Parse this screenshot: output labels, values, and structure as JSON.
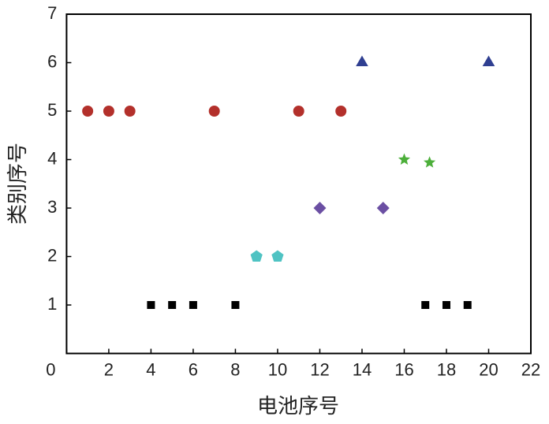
{
  "chart_data": {
    "type": "scatter",
    "x_label": "电池序号",
    "y_label": "类别序号",
    "xlim": [
      0,
      22
    ],
    "xticks": [
      0,
      2,
      4,
      6,
      8,
      10,
      12,
      14,
      16,
      18,
      20,
      22
    ],
    "ylim": [
      0,
      7
    ],
    "yticks": [
      0,
      1,
      2,
      3,
      4,
      5,
      6,
      7
    ],
    "grid": false,
    "series": [
      {
        "color": "#000000",
        "marker": "square",
        "x": [
          4,
          5,
          6,
          8,
          17,
          18,
          19
        ],
        "values": [
          1,
          1,
          1,
          1,
          1,
          1,
          1
        ]
      },
      {
        "color": "#4fc3c3",
        "marker": "pentagon",
        "x": [
          9,
          10
        ],
        "values": [
          2,
          2
        ]
      },
      {
        "color": "#6b4fa3",
        "marker": "diamond",
        "x": [
          12,
          15
        ],
        "values": [
          3,
          3
        ]
      },
      {
        "color": "#4caf3a",
        "marker": "star",
        "x": [
          16,
          17.2
        ],
        "values": [
          4,
          3.94
        ]
      },
      {
        "color": "#b3302b",
        "marker": "circle",
        "x": [
          1,
          2,
          3,
          7,
          11,
          13
        ],
        "values": [
          5,
          5,
          5,
          5,
          5,
          5
        ]
      },
      {
        "color": "#2f3f91",
        "marker": "triangle",
        "x": [
          14,
          20
        ],
        "values": [
          6,
          6
        ]
      }
    ]
  }
}
